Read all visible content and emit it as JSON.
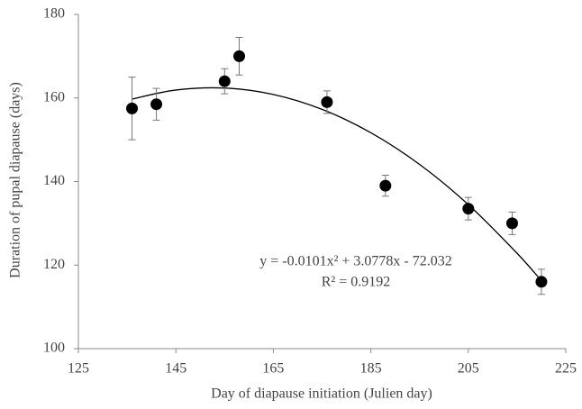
{
  "chart_data": {
    "type": "scatter",
    "xlabel": "Day of diapause initiation (Julien day)",
    "ylabel": "Duration of pupal diapause (days)",
    "series": [
      {
        "color": "#000000",
        "x": [
          136,
          141,
          155,
          158,
          176,
          188,
          205,
          214,
          220
        ],
        "values": [
          157.5,
          158.5,
          164,
          170,
          159,
          139,
          133.5,
          130,
          116
        ],
        "errors": [
          7.5,
          3.8,
          3,
          4.5,
          2.7,
          2.5,
          2.7,
          2.7,
          3
        ]
      }
    ],
    "trendline": {
      "color": "#000000",
      "x": [
        136,
        145,
        155,
        165,
        175,
        185,
        195,
        205,
        215,
        220
      ],
      "y": [
        159.74,
        161.9,
        162.38,
        160.84,
        157.27,
        151.69,
        144.09,
        134.47,
        122.83,
        116.25
      ]
    },
    "annotations": [
      "y = -0.0101x² + 3.0778x - 72.032",
      "R² = 0.9192"
    ],
    "xlim": [
      125,
      225
    ],
    "xticks": [
      125,
      145,
      165,
      185,
      205,
      225
    ],
    "ylim": [
      100,
      180
    ],
    "yticks": [
      100,
      120,
      140,
      160,
      180
    ],
    "grid": false
  }
}
